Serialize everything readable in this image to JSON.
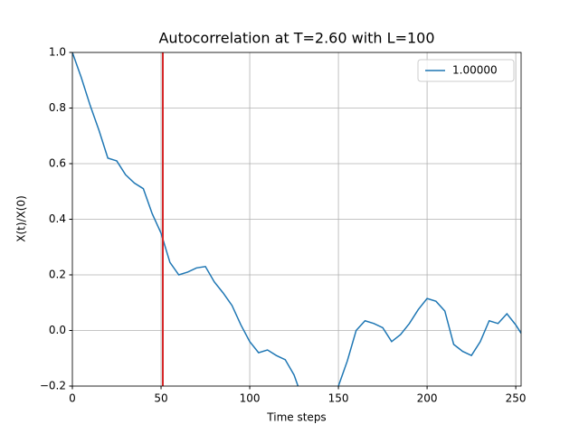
{
  "chart_data": {
    "type": "line",
    "title": "Autocorrelation at T=2.60 with L=100",
    "x_label": "Time steps",
    "y_label": "X(t)/X(0)",
    "x": [
      0,
      5,
      10,
      15,
      20,
      25,
      30,
      35,
      40,
      45,
      50,
      55,
      60,
      65,
      70,
      75,
      80,
      85,
      90,
      95,
      100,
      105,
      110,
      115,
      120,
      125,
      130,
      140,
      150,
      155,
      160,
      165,
      170,
      175,
      180,
      185,
      190,
      195,
      200,
      205,
      210,
      215,
      220,
      225,
      230,
      235,
      240,
      245,
      250,
      253
    ],
    "series": [
      {
        "name": "1.00000",
        "color": "#1f77b4",
        "values": [
          1.0,
          0.91,
          0.81,
          0.72,
          0.62,
          0.61,
          0.56,
          0.53,
          0.51,
          0.42,
          0.35,
          0.245,
          0.2,
          0.21,
          0.225,
          0.23,
          0.175,
          0.135,
          0.09,
          0.02,
          -0.04,
          -0.08,
          -0.07,
          -0.09,
          -0.105,
          -0.16,
          -0.25,
          -0.3,
          -0.2,
          -0.11,
          0.0,
          0.035,
          0.025,
          0.01,
          -0.04,
          -0.015,
          0.025,
          0.075,
          0.115,
          0.105,
          0.07,
          -0.05,
          -0.075,
          -0.09,
          -0.04,
          0.035,
          0.025,
          0.06,
          0.02,
          -0.01
        ]
      }
    ],
    "vline": {
      "x": 51,
      "color": "#d62728"
    },
    "xlim": [
      0,
      253
    ],
    "ylim": [
      -0.2,
      1.0
    ],
    "xticks": [
      0,
      50,
      100,
      150,
      200,
      250
    ],
    "yticks": [
      {
        "value": -0.2,
        "label": "−0.2"
      },
      {
        "value": 0,
        "label": "0.0"
      },
      {
        "value": 0.2,
        "label": "0.2"
      },
      {
        "value": 0.4,
        "label": "0.4"
      },
      {
        "value": 0.6,
        "label": "0.6"
      },
      {
        "value": 0.8,
        "label": "0.8"
      },
      {
        "value": 1.0,
        "label": "1.0"
      }
    ],
    "grid": true,
    "legend": "upper right"
  }
}
